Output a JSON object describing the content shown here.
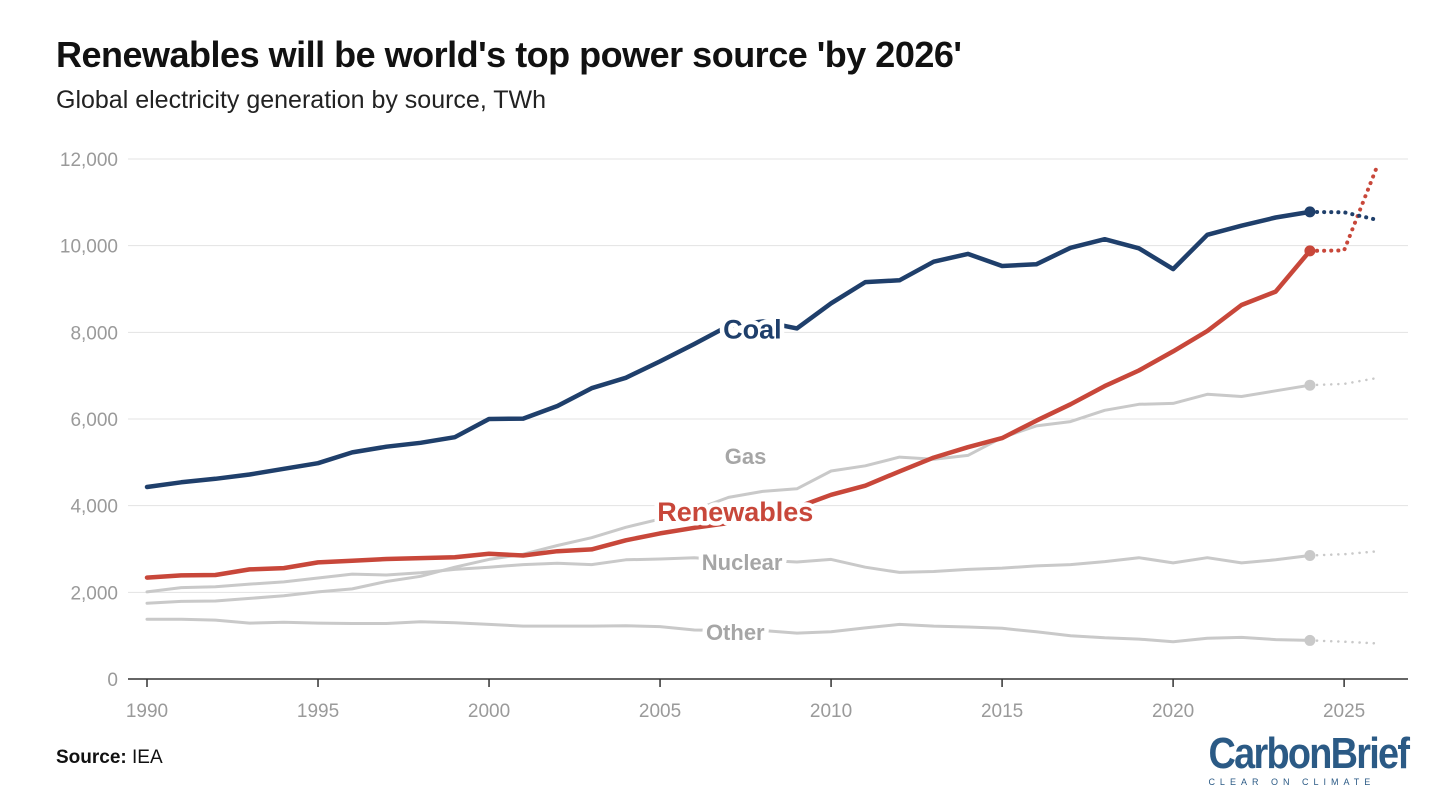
{
  "title": "Renewables will be world's top power source 'by 2026'",
  "subtitle": "Global electricity generation by source, TWh",
  "source": {
    "label": "Source:",
    "value": "IEA"
  },
  "logo": {
    "main": "CarbonBrief",
    "tagline": "CLEAR ON CLIMATE"
  },
  "colors": {
    "coal": "#1f3f6b",
    "renewables": "#c8473a",
    "grey": "#c9c9c9",
    "grid": "#e3e3e3",
    "axis": "#333333",
    "tick": "#9a9a9a"
  },
  "chart_data": {
    "type": "line",
    "title": "Renewables will be world's top power source 'by 2026'",
    "xlabel": "",
    "ylabel": "TWh",
    "xlim": [
      1990,
      2026.4
    ],
    "ylim": [
      0,
      12000
    ],
    "xticks": [
      1990,
      1995,
      2000,
      2005,
      2010,
      2015,
      2020,
      2025
    ],
    "yticks": [
      0,
      2000,
      4000,
      6000,
      8000,
      10000,
      12000
    ],
    "ytick_labels": [
      "0",
      "2,000",
      "4,000",
      "6,000",
      "8,000",
      "10,000",
      "12,000"
    ],
    "series": [
      {
        "name": "Other",
        "label": "Other",
        "style": "grey",
        "x": [
          1990,
          1991,
          1992,
          1993,
          1994,
          1995,
          1996,
          1997,
          1998,
          1999,
          2000,
          2001,
          2002,
          2003,
          2004,
          2005,
          2006,
          2007,
          2008,
          2009,
          2010,
          2011,
          2012,
          2013,
          2014,
          2015,
          2016,
          2017,
          2018,
          2019,
          2020,
          2021,
          2022,
          2023,
          2024
        ],
        "values": [
          1380,
          1380,
          1360,
          1290,
          1310,
          1290,
          1280,
          1280,
          1320,
          1300,
          1260,
          1220,
          1220,
          1220,
          1230,
          1210,
          1130,
          1120,
          1120,
          1060,
          1090,
          1180,
          1260,
          1220,
          1200,
          1170,
          1090,
          1000,
          950,
          920,
          860,
          940,
          960,
          910,
          890
        ],
        "forecast": {
          "x": [
            2024,
            2025,
            2026
          ],
          "values": [
            890,
            860,
            820
          ]
        }
      },
      {
        "name": "Nuclear",
        "label": "Nuclear",
        "style": "grey",
        "x": [
          1990,
          1991,
          1992,
          1993,
          1994,
          1995,
          1996,
          1997,
          1998,
          1999,
          2000,
          2001,
          2002,
          2003,
          2004,
          2005,
          2006,
          2007,
          2008,
          2009,
          2010,
          2011,
          2012,
          2013,
          2014,
          2015,
          2016,
          2017,
          2018,
          2019,
          2020,
          2021,
          2022,
          2023,
          2024
        ],
        "values": [
          2010,
          2110,
          2130,
          2190,
          2240,
          2330,
          2420,
          2400,
          2450,
          2530,
          2580,
          2640,
          2670,
          2640,
          2750,
          2770,
          2800,
          2740,
          2740,
          2700,
          2760,
          2580,
          2460,
          2480,
          2530,
          2560,
          2610,
          2640,
          2710,
          2800,
          2680,
          2800,
          2680,
          2750,
          2850
        ],
        "forecast": {
          "x": [
            2024,
            2025,
            2026
          ],
          "values": [
            2850,
            2880,
            2950
          ]
        }
      },
      {
        "name": "Gas",
        "label": "Gas",
        "style": "grey",
        "x": [
          1990,
          1991,
          1992,
          1993,
          1994,
          1995,
          1996,
          1997,
          1998,
          1999,
          2000,
          2001,
          2002,
          2003,
          2004,
          2005,
          2006,
          2007,
          2008,
          2009,
          2010,
          2011,
          2012,
          2013,
          2014,
          2015,
          2016,
          2017,
          2018,
          2019,
          2020,
          2021,
          2022,
          2023,
          2024
        ],
        "values": [
          1750,
          1790,
          1800,
          1860,
          1920,
          2010,
          2080,
          2250,
          2370,
          2580,
          2760,
          2880,
          3080,
          3260,
          3500,
          3690,
          3900,
          4190,
          4330,
          4390,
          4800,
          4920,
          5120,
          5070,
          5160,
          5570,
          5840,
          5940,
          6200,
          6340,
          6360,
          6570,
          6520,
          6650,
          6780
        ],
        "forecast": {
          "x": [
            2024,
            2025,
            2026
          ],
          "values": [
            6780,
            6810,
            6950
          ]
        }
      },
      {
        "name": "Renewables",
        "label": "Renewables",
        "style": "renewables",
        "x": [
          1990,
          1991,
          1992,
          1993,
          1994,
          1995,
          1996,
          1997,
          1998,
          1999,
          2000,
          2001,
          2002,
          2003,
          2004,
          2005,
          2006,
          2007,
          2008,
          2009,
          2010,
          2011,
          2012,
          2013,
          2014,
          2015,
          2016,
          2017,
          2018,
          2019,
          2020,
          2021,
          2022,
          2023,
          2024
        ],
        "values": [
          2340,
          2390,
          2400,
          2530,
          2560,
          2690,
          2730,
          2770,
          2790,
          2810,
          2890,
          2850,
          2950,
          2990,
          3200,
          3360,
          3490,
          3600,
          3790,
          3960,
          4250,
          4460,
          4790,
          5110,
          5350,
          5560,
          5960,
          6340,
          6760,
          7120,
          7560,
          8030,
          8630,
          8940,
          9880
        ],
        "forecast": {
          "x": [
            2024,
            2025,
            2026
          ],
          "values": [
            9880,
            9890,
            11900
          ]
        }
      },
      {
        "name": "Coal",
        "label": "Coal",
        "style": "coal",
        "x": [
          1990,
          1991,
          1992,
          1993,
          1994,
          1995,
          1996,
          1997,
          1998,
          1999,
          2000,
          2001,
          2002,
          2003,
          2004,
          2005,
          2006,
          2007,
          2008,
          2009,
          2010,
          2011,
          2012,
          2013,
          2014,
          2015,
          2016,
          2017,
          2018,
          2019,
          2020,
          2021,
          2022,
          2023,
          2024
        ],
        "values": [
          4430,
          4540,
          4620,
          4720,
          4850,
          4980,
          5230,
          5360,
          5450,
          5580,
          6000,
          6010,
          6300,
          6710,
          6950,
          7330,
          7730,
          8150,
          8250,
          8090,
          8670,
          9160,
          9200,
          9630,
          9810,
          9530,
          9570,
          9950,
          10150,
          9940,
          9460,
          10250,
          10460,
          10650,
          10780
        ],
        "forecast": {
          "x": [
            2024,
            2025,
            2026
          ],
          "values": [
            10780,
            10770,
            10590
          ]
        }
      }
    ]
  }
}
